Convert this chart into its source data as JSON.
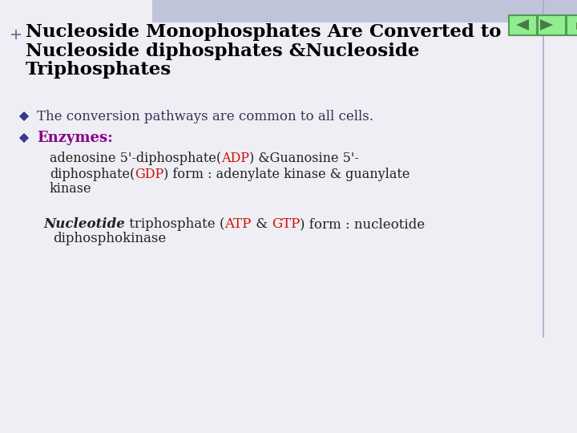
{
  "bg_color": "#eeeeF4",
  "header_stripe_color": "#c0c4d8",
  "title_line1": "Nucleoside Monophosphates Are Converted to",
  "title_line2": "Nucleoside diphosphates &Nucleoside",
  "title_line3": "Triphosphates",
  "title_color": "#000000",
  "title_fontsize": 16.5,
  "bullet_color": "#3a3a90",
  "bullet1_text": "The conversion pathways are common to all cells.",
  "body_text_color": "#333355",
  "body_fontsize": 12,
  "enzymes_label": "Enzymes:",
  "enzymes_color": "#880088",
  "enzymes_fontsize": 13,
  "sub_fontsize": 11.5,
  "red_color": "#cc1100",
  "black_color": "#222222",
  "nucleotide_fontsize": 12,
  "nav_bg": "#90ee90",
  "nav_border": "#559955"
}
